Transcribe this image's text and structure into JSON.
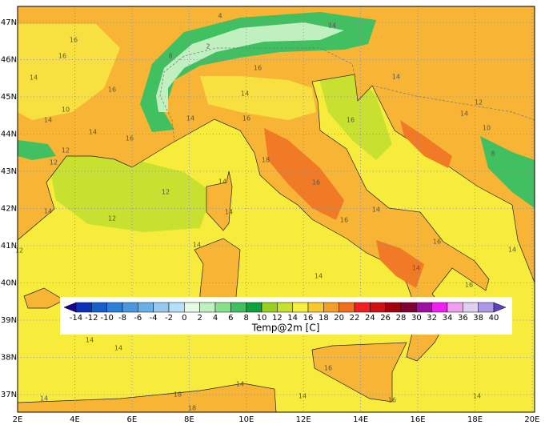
{
  "map": {
    "xticks": [
      {
        "value": 2,
        "label": "2E"
      },
      {
        "value": 4,
        "label": "4E"
      },
      {
        "value": 6,
        "label": "6E"
      },
      {
        "value": 8,
        "label": "8E"
      },
      {
        "value": 10,
        "label": "10E"
      },
      {
        "value": 12,
        "label": "12E"
      },
      {
        "value": 14,
        "label": "14E"
      },
      {
        "value": 16,
        "label": "16E"
      },
      {
        "value": 18,
        "label": "18E"
      },
      {
        "value": 20,
        "label": "20E"
      }
    ],
    "yticks": [
      {
        "value": 37,
        "label": "37N"
      },
      {
        "value": 38,
        "label": "38N"
      },
      {
        "value": 39,
        "label": "39N"
      },
      {
        "value": 40,
        "label": "40N"
      },
      {
        "value": 41,
        "label": "41N"
      },
      {
        "value": 42,
        "label": "42N"
      },
      {
        "value": 43,
        "label": "43N"
      },
      {
        "value": 44,
        "label": "44N"
      },
      {
        "value": 45,
        "label": "45N"
      },
      {
        "value": 46,
        "label": "46N"
      },
      {
        "value": 47,
        "label": "47N"
      }
    ],
    "contour_labels": [
      16,
      16,
      14,
      10,
      14,
      14,
      12,
      12,
      16,
      16,
      12,
      12,
      14,
      12,
      14,
      14,
      14,
      14,
      16,
      14,
      16,
      16,
      14,
      14,
      14,
      14,
      14,
      14,
      14,
      14,
      18,
      18,
      14,
      16,
      16,
      14,
      16,
      18,
      16,
      16,
      14,
      12,
      10,
      8,
      14,
      14,
      4,
      14,
      2,
      8,
      16
    ],
    "colorbar": {
      "label": "Temp@2m [C]",
      "levels": [
        -14,
        -12,
        -10,
        -8,
        -6,
        -4,
        -2,
        0,
        2,
        4,
        6,
        8,
        10,
        12,
        14,
        16,
        18,
        20,
        22,
        24,
        26,
        28,
        30,
        32,
        34,
        36,
        38,
        40
      ],
      "colors": [
        "#1a0096",
        "#0a2fb8",
        "#1560c8",
        "#2a80d8",
        "#4a98e0",
        "#6ab0e8",
        "#96c8f0",
        "#b4e0f8",
        "#e6fbe6",
        "#c0f0c0",
        "#88e088",
        "#40c060",
        "#10a040",
        "#98d020",
        "#c8e030",
        "#f8f040",
        "#f8c830",
        "#f4a028",
        "#f07020",
        "#f02020",
        "#d01010",
        "#a00010",
        "#800030",
        "#a010a0",
        "#f020f0",
        "#f0a0f0",
        "#e0d0f0",
        "#b098e8",
        "#6040c0"
      ]
    }
  }
}
